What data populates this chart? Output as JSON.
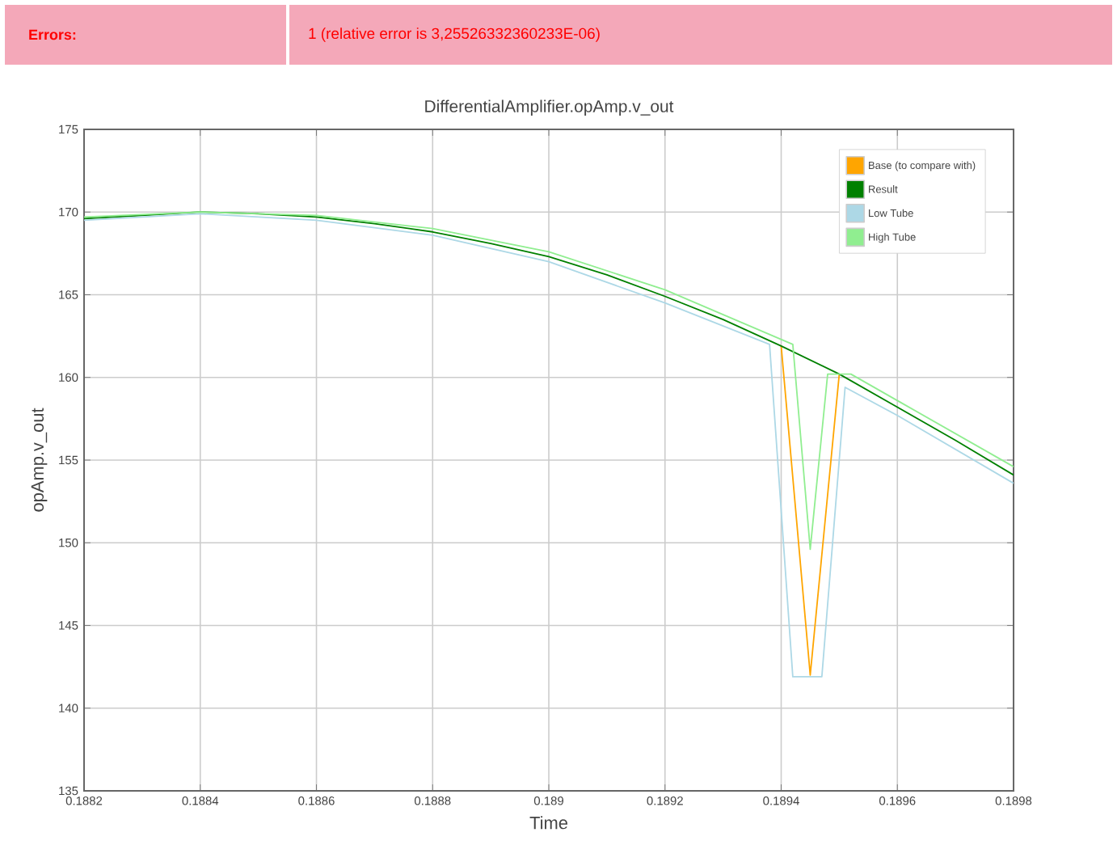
{
  "chart_data": {
    "type": "line",
    "title": "DifferentialAmplifier.opAmp.v_out",
    "xlabel": "Time",
    "ylabel": "opAmp.v_out",
    "annotations": [
      "Errors:",
      "1 (relative error is 3,25526332360233E-06)"
    ],
    "xlim": [
      0.1882,
      0.1898
    ],
    "xticks": [
      0.1882,
      0.1884,
      0.1886,
      0.1888,
      0.189,
      0.1892,
      0.1894,
      0.1896,
      0.1898
    ],
    "ylim": [
      135,
      175
    ],
    "yticks": [
      135,
      140,
      145,
      150,
      155,
      160,
      165,
      170,
      175
    ],
    "grid": true,
    "legend": "top right",
    "series": [
      {
        "name": "Base (to compare with)",
        "color": "#ffa500",
        "x": [
          0.1894,
          0.18945,
          0.1895
        ],
        "values": [
          161.9,
          142,
          160.2
        ]
      },
      {
        "name": "Result",
        "color": "#008000",
        "x": [
          0.1882,
          0.1883,
          0.1884,
          0.1885,
          0.1886,
          0.1887,
          0.1888,
          0.1889,
          0.189,
          0.1891,
          0.1892,
          0.1893,
          0.1894,
          0.1895,
          0.1896,
          0.1897,
          0.1898
        ],
        "values": [
          169.6,
          169.8,
          170.0,
          169.9,
          169.7,
          169.3,
          168.8,
          168.1,
          167.3,
          166.2,
          164.9,
          163.5,
          161.9,
          160.2,
          158.2,
          156.2,
          154.1
        ]
      },
      {
        "name": "Low Tube",
        "color": "#add8e6",
        "x": [
          0.1882,
          0.1884,
          0.1886,
          0.1888,
          0.189,
          0.1892,
          0.18938,
          0.18942,
          0.18947,
          0.18951,
          0.1896,
          0.1898
        ],
        "values": [
          169.5,
          169.9,
          169.5,
          168.6,
          167.0,
          164.5,
          162.0,
          141.9,
          141.9,
          159.4,
          157.7,
          153.6
        ]
      },
      {
        "name": "High Tube",
        "color": "#90ee90",
        "x": [
          0.1882,
          0.1884,
          0.1886,
          0.1888,
          0.189,
          0.1892,
          0.18942,
          0.18945,
          0.18948,
          0.18952,
          0.1896,
          0.1898
        ],
        "values": [
          169.7,
          170.0,
          169.8,
          169.0,
          167.6,
          165.3,
          162.0,
          149.6,
          160.2,
          160.2,
          158.6,
          154.6
        ]
      }
    ]
  }
}
